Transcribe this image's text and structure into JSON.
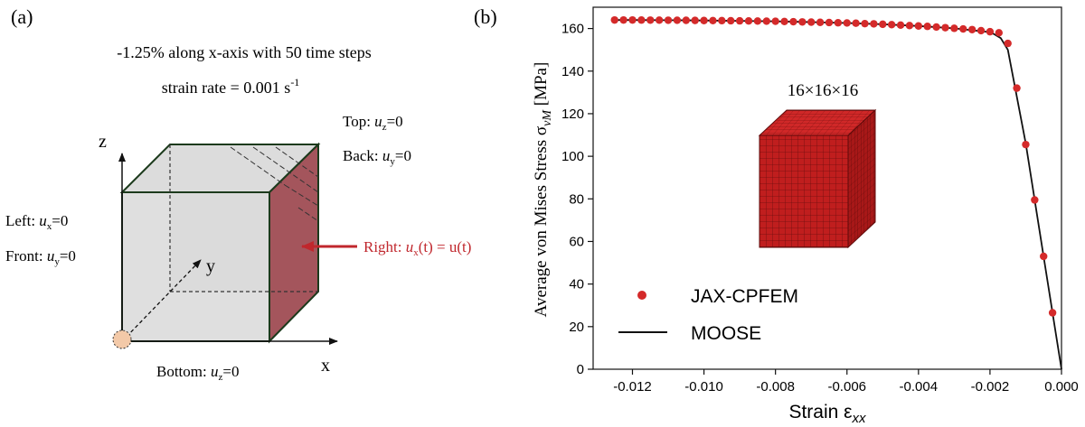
{
  "panel_a": {
    "label": "(a)",
    "caption_line1": "-1.25% along x-axis with 50 time steps",
    "caption_line2": "strain rate = 0.001 s",
    "caption_line2_sup": "-1",
    "bc": {
      "top": {
        "face": "Top: ",
        "var": "u",
        "sub": "z",
        "rhs": "=0"
      },
      "back": {
        "face": "Back: ",
        "var": "u",
        "sub": "y",
        "rhs": "=0"
      },
      "left": {
        "face": "Left: ",
        "var": "u",
        "sub": "x",
        "rhs": "=0"
      },
      "front": {
        "face": "Front: ",
        "var": "u",
        "sub": "y",
        "rhs": "=0"
      },
      "bottom": {
        "face": "Bottom: ",
        "var": "u",
        "sub": "z",
        "rhs": "=0"
      },
      "right": {
        "face": "Right: ",
        "var": "u",
        "sub": "x",
        "rhs": "(t) = u(t)"
      }
    },
    "axes": {
      "x": "x",
      "y": "y",
      "z": "z"
    },
    "colors": {
      "right_face": "#a4555c",
      "arrow": "#c0272d",
      "cube_edge": "#1c3a1c",
      "cube_fill": "#dedede",
      "origin": "#f3c9a8"
    }
  },
  "panel_b": {
    "label": "(b)",
    "inset_label": "16×16×16",
    "colors": {
      "points": "#d42a2a",
      "line": "#111111",
      "inset_cube": "#b81c1c"
    }
  },
  "chart_data": {
    "type": "line",
    "title": "",
    "xlabel": "Strain ε",
    "xlabel_sub": "xx",
    "ylabel": "Average von Mises Stress σ",
    "ylabel_sub": "vM",
    "ylabel_unit": " [MPa]",
    "xlim": [
      -0.0131,
      0.0
    ],
    "ylim": [
      0,
      170
    ],
    "xticks": [
      -0.012,
      -0.01,
      -0.008,
      -0.006,
      -0.004,
      -0.002,
      0.0
    ],
    "xtick_labels": [
      "-0.012",
      "-0.010",
      "-0.008",
      "-0.006",
      "-0.004",
      "-0.002",
      "0.000"
    ],
    "yticks": [
      0,
      20,
      40,
      60,
      80,
      100,
      120,
      140,
      160
    ],
    "ytick_labels": [
      "0",
      "20",
      "40",
      "60",
      "80",
      "100",
      "120",
      "140",
      "160"
    ],
    "legend": {
      "placement": "bottom-left"
    },
    "series": [
      {
        "name": "JAX-CPFEM",
        "kind": "scatter",
        "color": "#d42a2a",
        "x": [
          -0.00025,
          -0.0005,
          -0.00075,
          -0.001,
          -0.00125,
          -0.0015,
          -0.00175,
          -0.002,
          -0.00225,
          -0.0025,
          -0.00275,
          -0.003,
          -0.00325,
          -0.0035,
          -0.00375,
          -0.004,
          -0.00425,
          -0.0045,
          -0.00475,
          -0.005,
          -0.00525,
          -0.0055,
          -0.00575,
          -0.006,
          -0.00625,
          -0.0065,
          -0.00675,
          -0.007,
          -0.00725,
          -0.0075,
          -0.00775,
          -0.008,
          -0.00825,
          -0.0085,
          -0.00875,
          -0.009,
          -0.00925,
          -0.0095,
          -0.00975,
          -0.01,
          -0.01025,
          -0.0105,
          -0.01075,
          -0.011,
          -0.01125,
          -0.0115,
          -0.01175,
          -0.012,
          -0.01225,
          -0.0125
        ],
        "y": [
          26.5,
          53,
          79.5,
          105.5,
          132,
          153,
          158,
          158.5,
          159,
          159.5,
          159.8,
          160.1,
          160.4,
          160.7,
          161,
          161.2,
          161.4,
          161.6,
          161.8,
          162,
          162.2,
          162.3,
          162.5,
          162.6,
          162.7,
          162.8,
          162.9,
          163,
          163.1,
          163.2,
          163.3,
          163.4,
          163.45,
          163.5,
          163.55,
          163.6,
          163.65,
          163.7,
          163.72,
          163.75,
          163.8,
          163.85,
          163.88,
          163.9,
          163.92,
          163.95,
          163.97,
          164,
          164,
          164
        ]
      },
      {
        "name": "MOOSE",
        "kind": "line",
        "color": "#111111",
        "x": [
          0.0,
          -0.0005,
          -0.001,
          -0.0015,
          -0.0017,
          -0.0019,
          -0.002,
          -0.003,
          -0.004,
          -0.005,
          -0.006,
          -0.007,
          -0.008,
          -0.009,
          -0.01,
          -0.011,
          -0.012,
          -0.0125
        ],
        "y": [
          0,
          53,
          106,
          150,
          155.5,
          157.5,
          158.3,
          160.1,
          161.2,
          162,
          162.6,
          163,
          163.4,
          163.6,
          163.75,
          163.9,
          164,
          164
        ]
      }
    ]
  }
}
